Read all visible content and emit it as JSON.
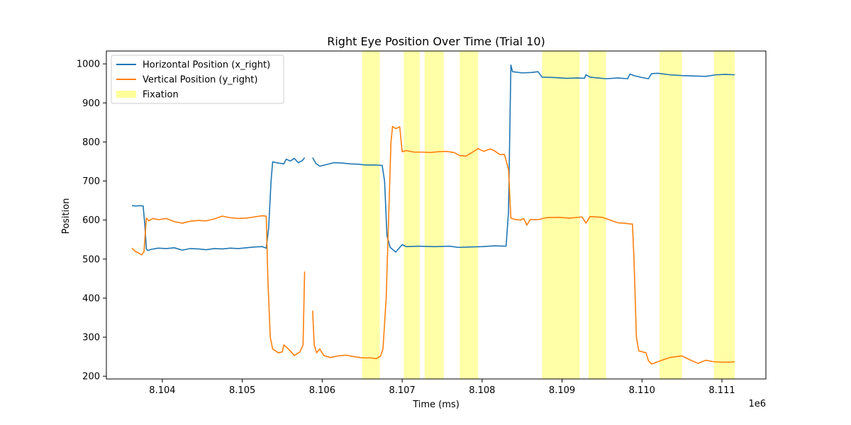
{
  "chart_data": {
    "type": "line",
    "title": "Right Eye Position Over Time (Trial 10)",
    "xlabel": "Time (ms)",
    "ylabel": "Position",
    "x_offset_label": "1e6",
    "x_scale": 1000000,
    "xlim": [
      8103.3,
      8111.55
    ],
    "ylim": [
      193,
      1033
    ],
    "xticks": [
      8104,
      8105,
      8106,
      8107,
      8108,
      8109,
      8110,
      8111
    ],
    "xtick_labels": [
      "8.104",
      "8.105",
      "8.106",
      "8.107",
      "8.108",
      "8.109",
      "8.110",
      "8.111"
    ],
    "yticks": [
      200,
      300,
      400,
      500,
      600,
      700,
      800,
      900,
      1000
    ],
    "grid": false,
    "legend_position": "upper-left",
    "fixation_label": "Fixation",
    "fixation_color": "#ffff99",
    "fixations": [
      [
        8106.5,
        8106.72
      ],
      [
        8107.02,
        8107.22
      ],
      [
        8107.28,
        8107.52
      ],
      [
        8107.72,
        8107.95
      ],
      [
        8108.75,
        8109.22
      ],
      [
        8109.33,
        8109.55
      ],
      [
        8110.22,
        8110.5
      ],
      [
        8110.9,
        8111.16
      ]
    ],
    "series": [
      {
        "name": "Horizontal Position (x_right)",
        "color": "#1f77b4",
        "segments": [
          [
            [
              8103.62,
              637
            ],
            [
              8103.67,
              636
            ],
            [
              8103.72,
              637
            ],
            [
              8103.76,
              636
            ],
            [
              8103.78,
              590
            ],
            [
              8103.8,
              526
            ],
            [
              8103.82,
              522
            ],
            [
              8103.86,
              525
            ],
            [
              8103.95,
              528
            ],
            [
              8104.05,
              527
            ],
            [
              8104.15,
              529
            ],
            [
              8104.25,
              523
            ],
            [
              8104.35,
              527
            ],
            [
              8104.45,
              526
            ],
            [
              8104.55,
              524
            ],
            [
              8104.65,
              527
            ],
            [
              8104.75,
              526
            ],
            [
              8104.85,
              528
            ],
            [
              8104.95,
              527
            ],
            [
              8105.05,
              529
            ],
            [
              8105.15,
              531
            ],
            [
              8105.25,
              532
            ],
            [
              8105.3,
              528
            ],
            [
              8105.33,
              580
            ],
            [
              8105.36,
              700
            ],
            [
              8105.38,
              749
            ],
            [
              8105.45,
              746
            ],
            [
              8105.52,
              744
            ],
            [
              8105.55,
              756
            ],
            [
              8105.6,
              751
            ],
            [
              8105.65,
              758
            ],
            [
              8105.7,
              747
            ],
            [
              8105.75,
              752
            ],
            [
              8105.78,
              760
            ]
          ],
          [
            [
              8105.88,
              760
            ],
            [
              8105.92,
              745
            ],
            [
              8105.97,
              738
            ],
            [
              8106.05,
              742
            ],
            [
              8106.15,
              747
            ],
            [
              8106.25,
              746
            ],
            [
              8106.35,
              744
            ],
            [
              8106.45,
              743
            ],
            [
              8106.55,
              741
            ],
            [
              8106.65,
              741
            ],
            [
              8106.75,
              740
            ],
            [
              8106.78,
              700
            ],
            [
              8106.81,
              560
            ],
            [
              8106.85,
              530
            ],
            [
              8106.92,
              518
            ],
            [
              8106.97,
              530
            ],
            [
              8107.0,
              537
            ],
            [
              8107.05,
              532
            ],
            [
              8107.2,
              533
            ],
            [
              8107.4,
              532
            ],
            [
              8107.6,
              533
            ],
            [
              8107.7,
              530
            ],
            [
              8107.85,
              531
            ],
            [
              8108.0,
              532
            ],
            [
              8108.15,
              534
            ],
            [
              8108.3,
              533
            ],
            [
              8108.33,
              620
            ],
            [
              8108.36,
              997
            ],
            [
              8108.38,
              980
            ],
            [
              8108.5,
              977
            ],
            [
              8108.62,
              978
            ],
            [
              8108.7,
              980
            ],
            [
              8108.75,
              966
            ],
            [
              8108.9,
              965
            ],
            [
              8109.05,
              963
            ],
            [
              8109.2,
              964
            ],
            [
              8109.28,
              963
            ],
            [
              8109.3,
              972
            ],
            [
              8109.35,
              966
            ],
            [
              8109.45,
              964
            ],
            [
              8109.55,
              962
            ],
            [
              8109.7,
              964
            ],
            [
              8109.82,
              962
            ],
            [
              8109.85,
              974
            ],
            [
              8109.9,
              970
            ],
            [
              8110.0,
              965
            ],
            [
              8110.08,
              962
            ],
            [
              8110.12,
              975
            ],
            [
              8110.2,
              976
            ],
            [
              8110.35,
              972
            ],
            [
              8110.5,
              970
            ],
            [
              8110.65,
              969
            ],
            [
              8110.8,
              968
            ],
            [
              8110.92,
              972
            ],
            [
              8111.05,
              973
            ],
            [
              8111.16,
              972
            ]
          ]
        ]
      },
      {
        "name": "Vertical Position (y_right)",
        "color": "#ff7f0e",
        "segments": [
          [
            [
              8103.62,
              528
            ],
            [
              8103.66,
              520
            ],
            [
              8103.7,
              516
            ],
            [
              8103.74,
              511
            ],
            [
              8103.77,
              518
            ],
            [
              8103.8,
              605
            ],
            [
              8103.83,
              598
            ],
            [
              8103.88,
              604
            ],
            [
              8103.95,
              601
            ],
            [
              8104.05,
              604
            ],
            [
              8104.15,
              596
            ],
            [
              8104.25,
              592
            ],
            [
              8104.35,
              597
            ],
            [
              8104.45,
              599
            ],
            [
              8104.55,
              598
            ],
            [
              8104.65,
              603
            ],
            [
              8104.75,
              610
            ],
            [
              8104.85,
              606
            ],
            [
              8104.95,
              604
            ],
            [
              8105.05,
              605
            ],
            [
              8105.15,
              608
            ],
            [
              8105.25,
              611
            ],
            [
              8105.3,
              610
            ],
            [
              8105.32,
              450
            ],
            [
              8105.35,
              300
            ],
            [
              8105.38,
              270
            ],
            [
              8105.45,
              260
            ],
            [
              8105.5,
              262
            ],
            [
              8105.52,
              280
            ],
            [
              8105.55,
              275
            ],
            [
              8105.6,
              265
            ],
            [
              8105.65,
              253
            ],
            [
              8105.72,
              262
            ],
            [
              8105.76,
              280
            ],
            [
              8105.78,
              468
            ]
          ],
          [
            [
              8105.88,
              368
            ],
            [
              8105.9,
              280
            ],
            [
              8105.93,
              260
            ],
            [
              8105.97,
              270
            ],
            [
              8106.02,
              253
            ],
            [
              8106.1,
              248
            ],
            [
              8106.2,
              252
            ],
            [
              8106.3,
              254
            ],
            [
              8106.4,
              250
            ],
            [
              8106.5,
              247
            ],
            [
              8106.6,
              247
            ],
            [
              8106.68,
              245
            ],
            [
              8106.73,
              252
            ],
            [
              8106.76,
              270
            ],
            [
              8106.8,
              400
            ],
            [
              8106.83,
              600
            ],
            [
              8106.86,
              800
            ],
            [
              8106.88,
              840
            ],
            [
              8106.92,
              834
            ],
            [
              8106.97,
              839
            ],
            [
              8107.0,
              775
            ],
            [
              8107.05,
              778
            ],
            [
              8107.15,
              774
            ],
            [
              8107.25,
              774
            ],
            [
              8107.35,
              773
            ],
            [
              8107.45,
              775
            ],
            [
              8107.55,
              776
            ],
            [
              8107.65,
              773
            ],
            [
              8107.72,
              765
            ],
            [
              8107.8,
              764
            ],
            [
              8107.88,
              774
            ],
            [
              8107.95,
              783
            ],
            [
              8108.02,
              776
            ],
            [
              8108.1,
              782
            ],
            [
              8108.15,
              778
            ],
            [
              8108.22,
              768
            ],
            [
              8108.28,
              768
            ],
            [
              8108.33,
              730
            ],
            [
              8108.36,
              605
            ],
            [
              8108.4,
              602
            ],
            [
              8108.48,
              600
            ],
            [
              8108.52,
              604
            ],
            [
              8108.56,
              587
            ],
            [
              8108.6,
              601
            ],
            [
              8108.7,
              601
            ],
            [
              8108.8,
              606
            ],
            [
              8108.95,
              607
            ],
            [
              8109.1,
              605
            ],
            [
              8109.25,
              608
            ],
            [
              8109.3,
              592
            ],
            [
              8109.35,
              609
            ],
            [
              8109.5,
              607
            ],
            [
              8109.6,
              600
            ],
            [
              8109.7,
              593
            ],
            [
              8109.78,
              592
            ],
            [
              8109.85,
              590
            ],
            [
              8109.88,
              590
            ],
            [
              8109.9,
              500
            ],
            [
              8109.93,
              300
            ],
            [
              8109.96,
              265
            ],
            [
              8110.05,
              260
            ],
            [
              8110.08,
              240
            ],
            [
              8110.12,
              231
            ],
            [
              8110.25,
              241
            ],
            [
              8110.35,
              248
            ],
            [
              8110.5,
              252
            ],
            [
              8110.6,
              242
            ],
            [
              8110.7,
              233
            ],
            [
              8110.8,
              241
            ],
            [
              8110.9,
              237
            ],
            [
              8111.0,
              236
            ],
            [
              8111.1,
              236
            ],
            [
              8111.16,
              237
            ]
          ]
        ]
      }
    ]
  }
}
